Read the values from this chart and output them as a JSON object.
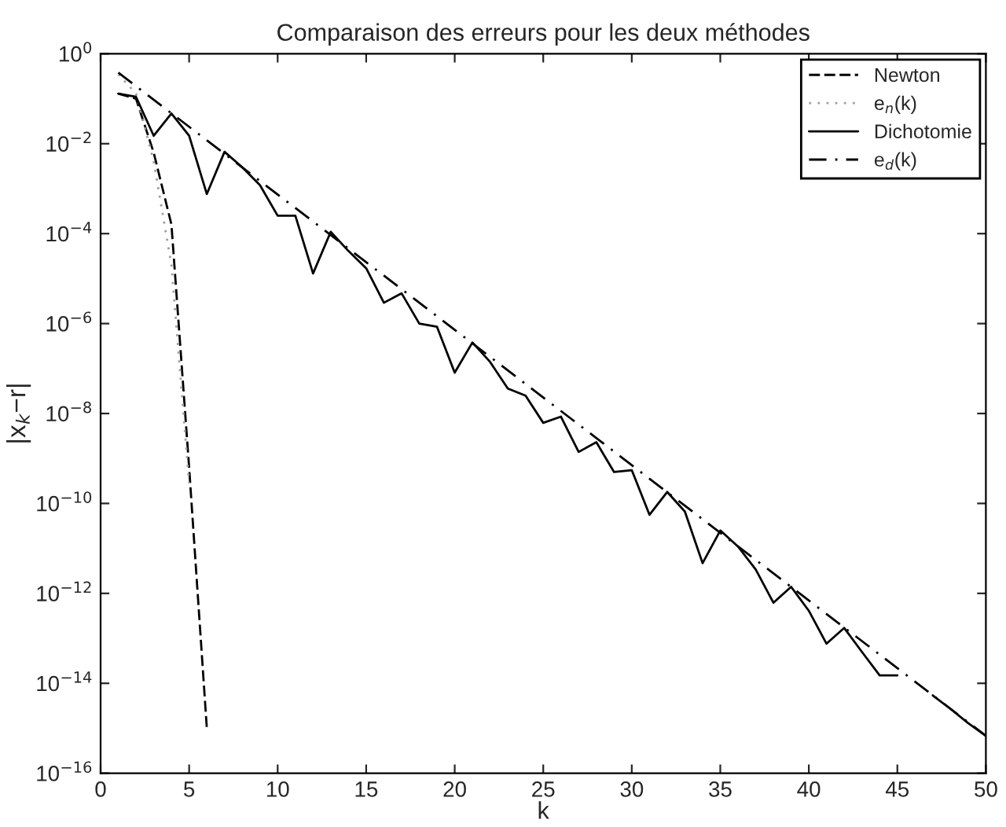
{
  "chart_data": {
    "type": "line",
    "title": "Comparaison des erreurs pour les deux méthodes",
    "xlabel": "k",
    "ylabel": "|x$_{k}$−r|",
    "log": "y",
    "grid": false,
    "legend": "top right",
    "xlim": [
      0,
      50
    ],
    "ylim": [
      1e-16,
      1
    ],
    "xticks": [
      0,
      5,
      10,
      15,
      20,
      25,
      30,
      35,
      40,
      45,
      50
    ],
    "yticks": [
      {
        "value": 1e-16,
        "label": "10$^{−16}$"
      },
      {
        "value": 1e-14,
        "label": "10$^{−14}$"
      },
      {
        "value": 1e-12,
        "label": "10$^{−12}$"
      },
      {
        "value": 1e-10,
        "label": "10$^{−10}$"
      },
      {
        "value": 1e-08,
        "label": "10$^{−8}$"
      },
      {
        "value": 1e-06,
        "label": "10$^{−6}$"
      },
      {
        "value": 0.0001,
        "label": "10$^{−4}$"
      },
      {
        "value": 0.01,
        "label": "10$^{−2}$"
      },
      {
        "value": 1,
        "label": "10$^{0}$"
      }
    ],
    "series": [
      {
        "name": "Newton",
        "color": "#000000",
        "line_style": "dashed",
        "x": [
          1,
          2,
          3,
          4,
          5,
          6
        ],
        "values": [
          0.13,
          0.1,
          0.0063,
          0.00016,
          6.3e-10,
          1e-15
        ]
      },
      {
        "name": "e$_{n}$(k)",
        "color": "#a0a0a0",
        "line_style": "dotted",
        "x": [
          1,
          2,
          3,
          4,
          5
        ],
        "values": [
          0.35,
          0.13,
          0.004,
          2e-05,
          2.8e-10
        ]
      },
      {
        "name": "Dichotomie",
        "color": "#000000",
        "line_style": "solid",
        "x": [
          1,
          2,
          3,
          4,
          5,
          6,
          7,
          8,
          9,
          10,
          11,
          12,
          13,
          14,
          15,
          16,
          17,
          18,
          19,
          20,
          21,
          22,
          23,
          24,
          25,
          26,
          27,
          28,
          29,
          30,
          31,
          32,
          33,
          34,
          35,
          36,
          37,
          38,
          39,
          40,
          41,
          42,
          43,
          44,
          45,
          46,
          47,
          48,
          49,
          50
        ],
        "values": [
          0.13,
          0.11,
          0.015,
          0.047,
          0.015,
          0.00076,
          0.0066,
          0.003,
          0.0012,
          0.00025,
          0.00025,
          1.3e-05,
          0.00011,
          4.1e-05,
          1.7e-05,
          2.9e-06,
          4.7e-06,
          1e-06,
          8.5e-07,
          8.1e-08,
          3.8e-07,
          1.4e-07,
          3.6e-08,
          2.5e-08,
          6.2e-09,
          8.5e-09,
          1.4e-09,
          2.3e-09,
          5e-10,
          5.5e-10,
          5.6e-11,
          1.8e-10,
          6.6e-11,
          4.7e-12,
          2.5e-11,
          1.1e-11,
          3.4e-12,
          6.2e-13,
          1.4e-12,
          4.1e-13,
          7.6e-14,
          1.7e-13,
          5e-14,
          1.5e-14,
          1.5e-14,
          null,
          5.4e-15,
          2.7e-15,
          1.3e-15,
          6.8e-16
        ]
      },
      {
        "name": "e$_{d}$(k)",
        "color": "#000000",
        "line_style": "dashdot",
        "x": [
          1,
          50
        ],
        "values": [
          0.38,
          6.8e-16
        ]
      }
    ]
  }
}
